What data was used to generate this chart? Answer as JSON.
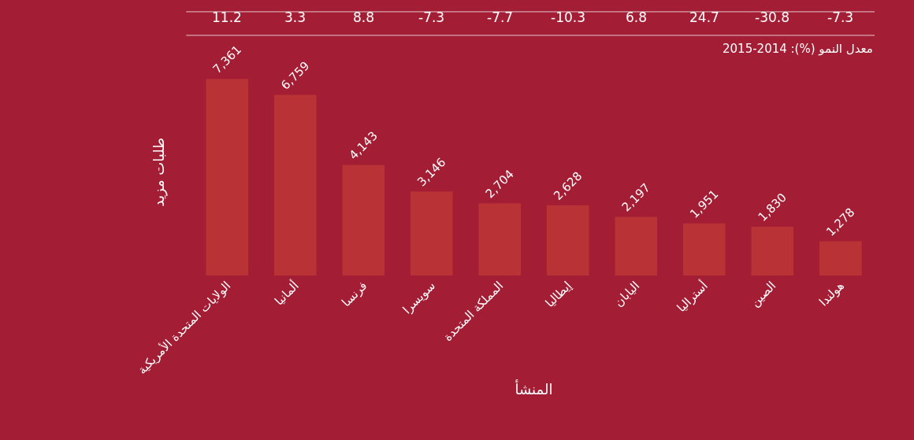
{
  "chart_data": {
    "type": "bar",
    "categories": [
      "الولايات المتحدة الأمريكية",
      "ألمانيا",
      "فرنسا",
      "سويسرا",
      "المملكة المتحدة",
      "إيطاليا",
      "اليابان",
      "أستراليا",
      "الصين",
      "هولندا"
    ],
    "values": [
      7361,
      6759,
      4143,
      3146,
      2704,
      2628,
      2197,
      1951,
      1830,
      1278
    ],
    "value_labels": [
      "7,361",
      "6,759",
      "4,143",
      "3,146",
      "2,704",
      "2,628",
      "2,197",
      "1,951",
      "1,830",
      "1,278"
    ],
    "color": "#b83236",
    "xlabel": "المنشأ",
    "ylabel": "طلبات مزيد",
    "tick_labels": "x",
    "annotations": [
      "معدل النمو (%): 2014-2015",
      "11.2",
      "3.3",
      "8.8",
      "-7.3",
      "-7.7",
      "-10.3",
      "6.8",
      "24.7",
      "-30.8",
      "-7.3"
    ]
  }
}
